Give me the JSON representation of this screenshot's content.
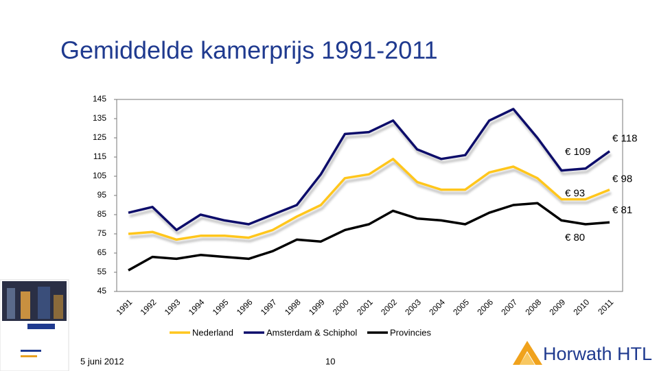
{
  "title": "Gemiddelde kamerprijs 1991-2011",
  "date": "5 juni 2012",
  "page": "10",
  "logo": "Horwath HTL",
  "chart_data": {
    "type": "line",
    "categories": [
      "1991",
      "1992",
      "1993",
      "1994",
      "1995",
      "1996",
      "1997",
      "1998",
      "1999",
      "2000",
      "2001",
      "2002",
      "2003",
      "2004",
      "2005",
      "2006",
      "2007",
      "2008",
      "2009",
      "2010",
      "2011"
    ],
    "series": [
      {
        "name": "Nederland",
        "color": "#ffc61e",
        "values": [
          75,
          76,
          72,
          74,
          74,
          73,
          77,
          84,
          90,
          104,
          106,
          114,
          102,
          98,
          98,
          107,
          110,
          104,
          93,
          93,
          98
        ],
        "value_labels": [
          null,
          null,
          null,
          null,
          null,
          null,
          null,
          null,
          null,
          null,
          null,
          null,
          null,
          null,
          null,
          null,
          null,
          null,
          null,
          "€ 93",
          "€ 98"
        ]
      },
      {
        "name": "Amsterdam & Schiphol",
        "color": "#0d0d6b",
        "values": [
          86,
          89,
          77,
          85,
          82,
          80,
          85,
          90,
          106,
          127,
          128,
          134,
          119,
          114,
          116,
          134,
          140,
          125,
          108,
          109,
          118
        ],
        "value_labels": [
          null,
          null,
          null,
          null,
          null,
          null,
          null,
          null,
          null,
          null,
          null,
          null,
          null,
          null,
          null,
          null,
          null,
          null,
          null,
          "€ 109",
          "€ 118"
        ]
      },
      {
        "name": "Provincies",
        "color": "#000000",
        "values": [
          56,
          63,
          62,
          64,
          63,
          62,
          66,
          72,
          71,
          77,
          80,
          87,
          83,
          82,
          80,
          86,
          90,
          91,
          82,
          80,
          81
        ],
        "value_labels": [
          null,
          null,
          null,
          null,
          null,
          null,
          null,
          null,
          null,
          null,
          null,
          null,
          null,
          null,
          null,
          null,
          null,
          null,
          null,
          "€ 80",
          "€ 81"
        ]
      }
    ],
    "ylim": [
      45,
      145
    ],
    "yticks": [
      45,
      55,
      65,
      75,
      85,
      95,
      105,
      115,
      125,
      135,
      145
    ],
    "grid": false,
    "legend": "bottom"
  }
}
